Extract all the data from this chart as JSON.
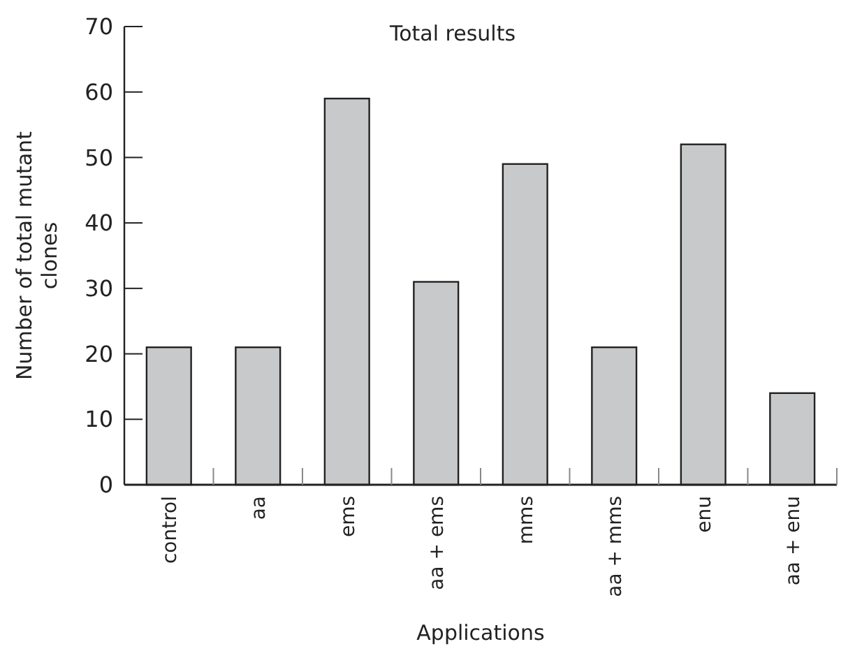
{
  "chart_data": {
    "type": "bar",
    "title": "Total results",
    "xlabel": "Applications",
    "ylabel": "Number of total mutant clones",
    "categories": [
      "control",
      "aa",
      "ems",
      "aa + ems",
      "mms",
      "aa + mms",
      "enu",
      "aa + enu"
    ],
    "values": [
      21,
      21,
      59,
      31,
      49,
      21,
      52,
      14
    ],
    "color": "#c8c9cb",
    "ylim": [
      0,
      70
    ],
    "yticks": [
      0,
      10,
      20,
      30,
      40,
      50,
      60,
      70
    ],
    "grid": false
  }
}
